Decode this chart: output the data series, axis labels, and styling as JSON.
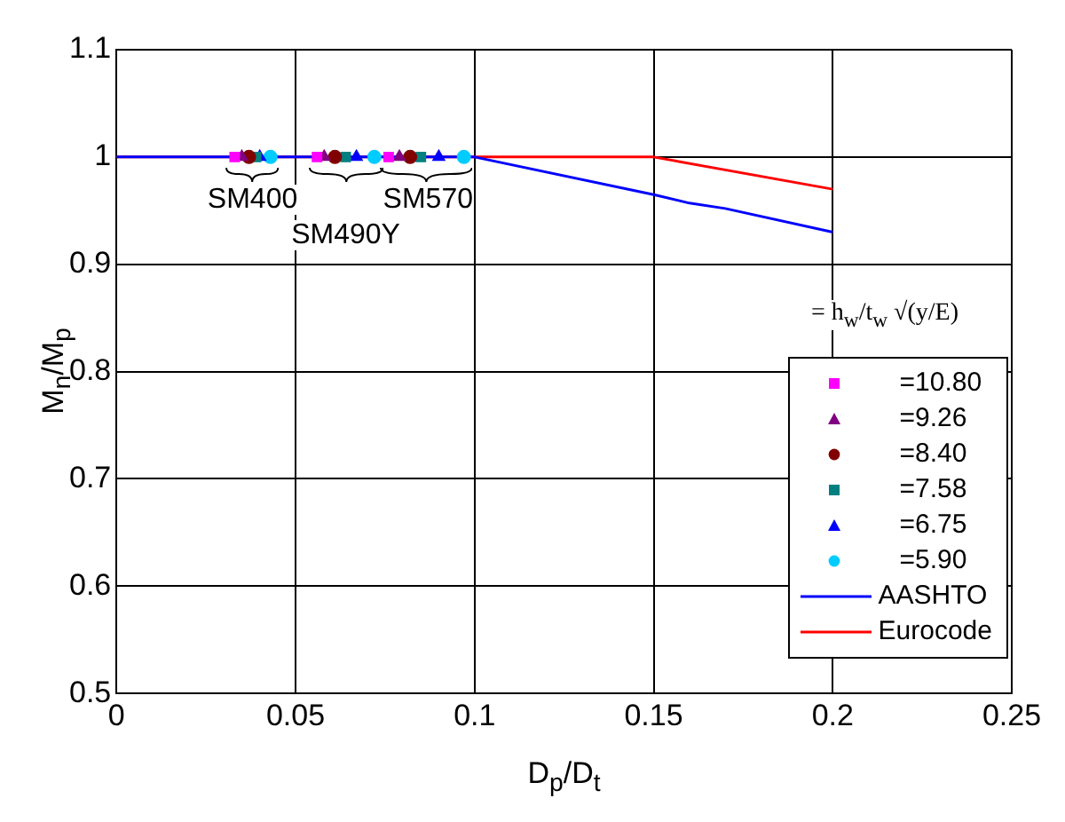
{
  "chart_data": {
    "type": "scatter",
    "xlabel": "D$_{p}$/D$_{t}$",
    "ylabel": "M$_{n}$/M$_{p}$",
    "xlim": [
      0,
      0.25
    ],
    "xticks": [
      0,
      0.05,
      0.1,
      0.15,
      0.2,
      0.25
    ],
    "ylim": [
      0.5,
      1.1
    ],
    "yticks": [
      0.5,
      0.6,
      0.7,
      0.8,
      0.9,
      1,
      1.1
    ],
    "grid": true,
    "legend": "bottom right",
    "series": [
      {
        "name": "=10.80",
        "color": "#ff00ff",
        "marker": "square",
        "x": [
          0.033,
          0.056,
          0.076
        ],
        "values": [
          1,
          1,
          1
        ]
      },
      {
        "name": "=9.26",
        "color": "#800080",
        "marker": "triangle",
        "x": [
          0.035,
          0.058,
          0.079
        ],
        "values": [
          1,
          1,
          1
        ]
      },
      {
        "name": "=8.40",
        "color": "#800000",
        "marker": "circle",
        "x": [
          0.037,
          0.061,
          0.082
        ],
        "values": [
          1,
          1,
          1
        ]
      },
      {
        "name": "=7.58",
        "color": "#008080",
        "marker": "square",
        "x": [
          0.039,
          0.064,
          0.085
        ],
        "values": [
          1,
          1,
          1
        ]
      },
      {
        "name": "=6.75",
        "color": "#0000ff",
        "marker": "triangle",
        "x": [
          0.04,
          0.067,
          0.09
        ],
        "values": [
          1,
          1,
          1
        ]
      },
      {
        "name": "=5.90",
        "color": "#00ccff",
        "marker": "circle",
        "x": [
          0.043,
          0.072,
          0.097
        ],
        "values": [
          1,
          1,
          1
        ]
      },
      {
        "name": "AASHTO",
        "type": "line",
        "color": "#0000ff",
        "marker": "none",
        "x": [
          0,
          0.1,
          0.15,
          0.16,
          0.17,
          0.2
        ],
        "values": [
          1,
          1,
          0.965,
          0.957,
          0.952,
          0.93
        ]
      },
      {
        "name": "Eurocode",
        "type": "line",
        "color": "#ff0000",
        "marker": "none",
        "x": [
          0,
          0.15,
          0.2
        ],
        "values": [
          1,
          1,
          0.97
        ]
      }
    ],
    "annotations": [
      {
        "text": "SM400",
        "x": 0.038,
        "y": 1
      },
      {
        "text": "SM490Y",
        "x": 0.064,
        "y": 1
      },
      {
        "text": "SM570",
        "x": 0.087,
        "y": 1
      },
      "= h$_{w}$/t$_{w}$ √(y/E)"
    ]
  }
}
